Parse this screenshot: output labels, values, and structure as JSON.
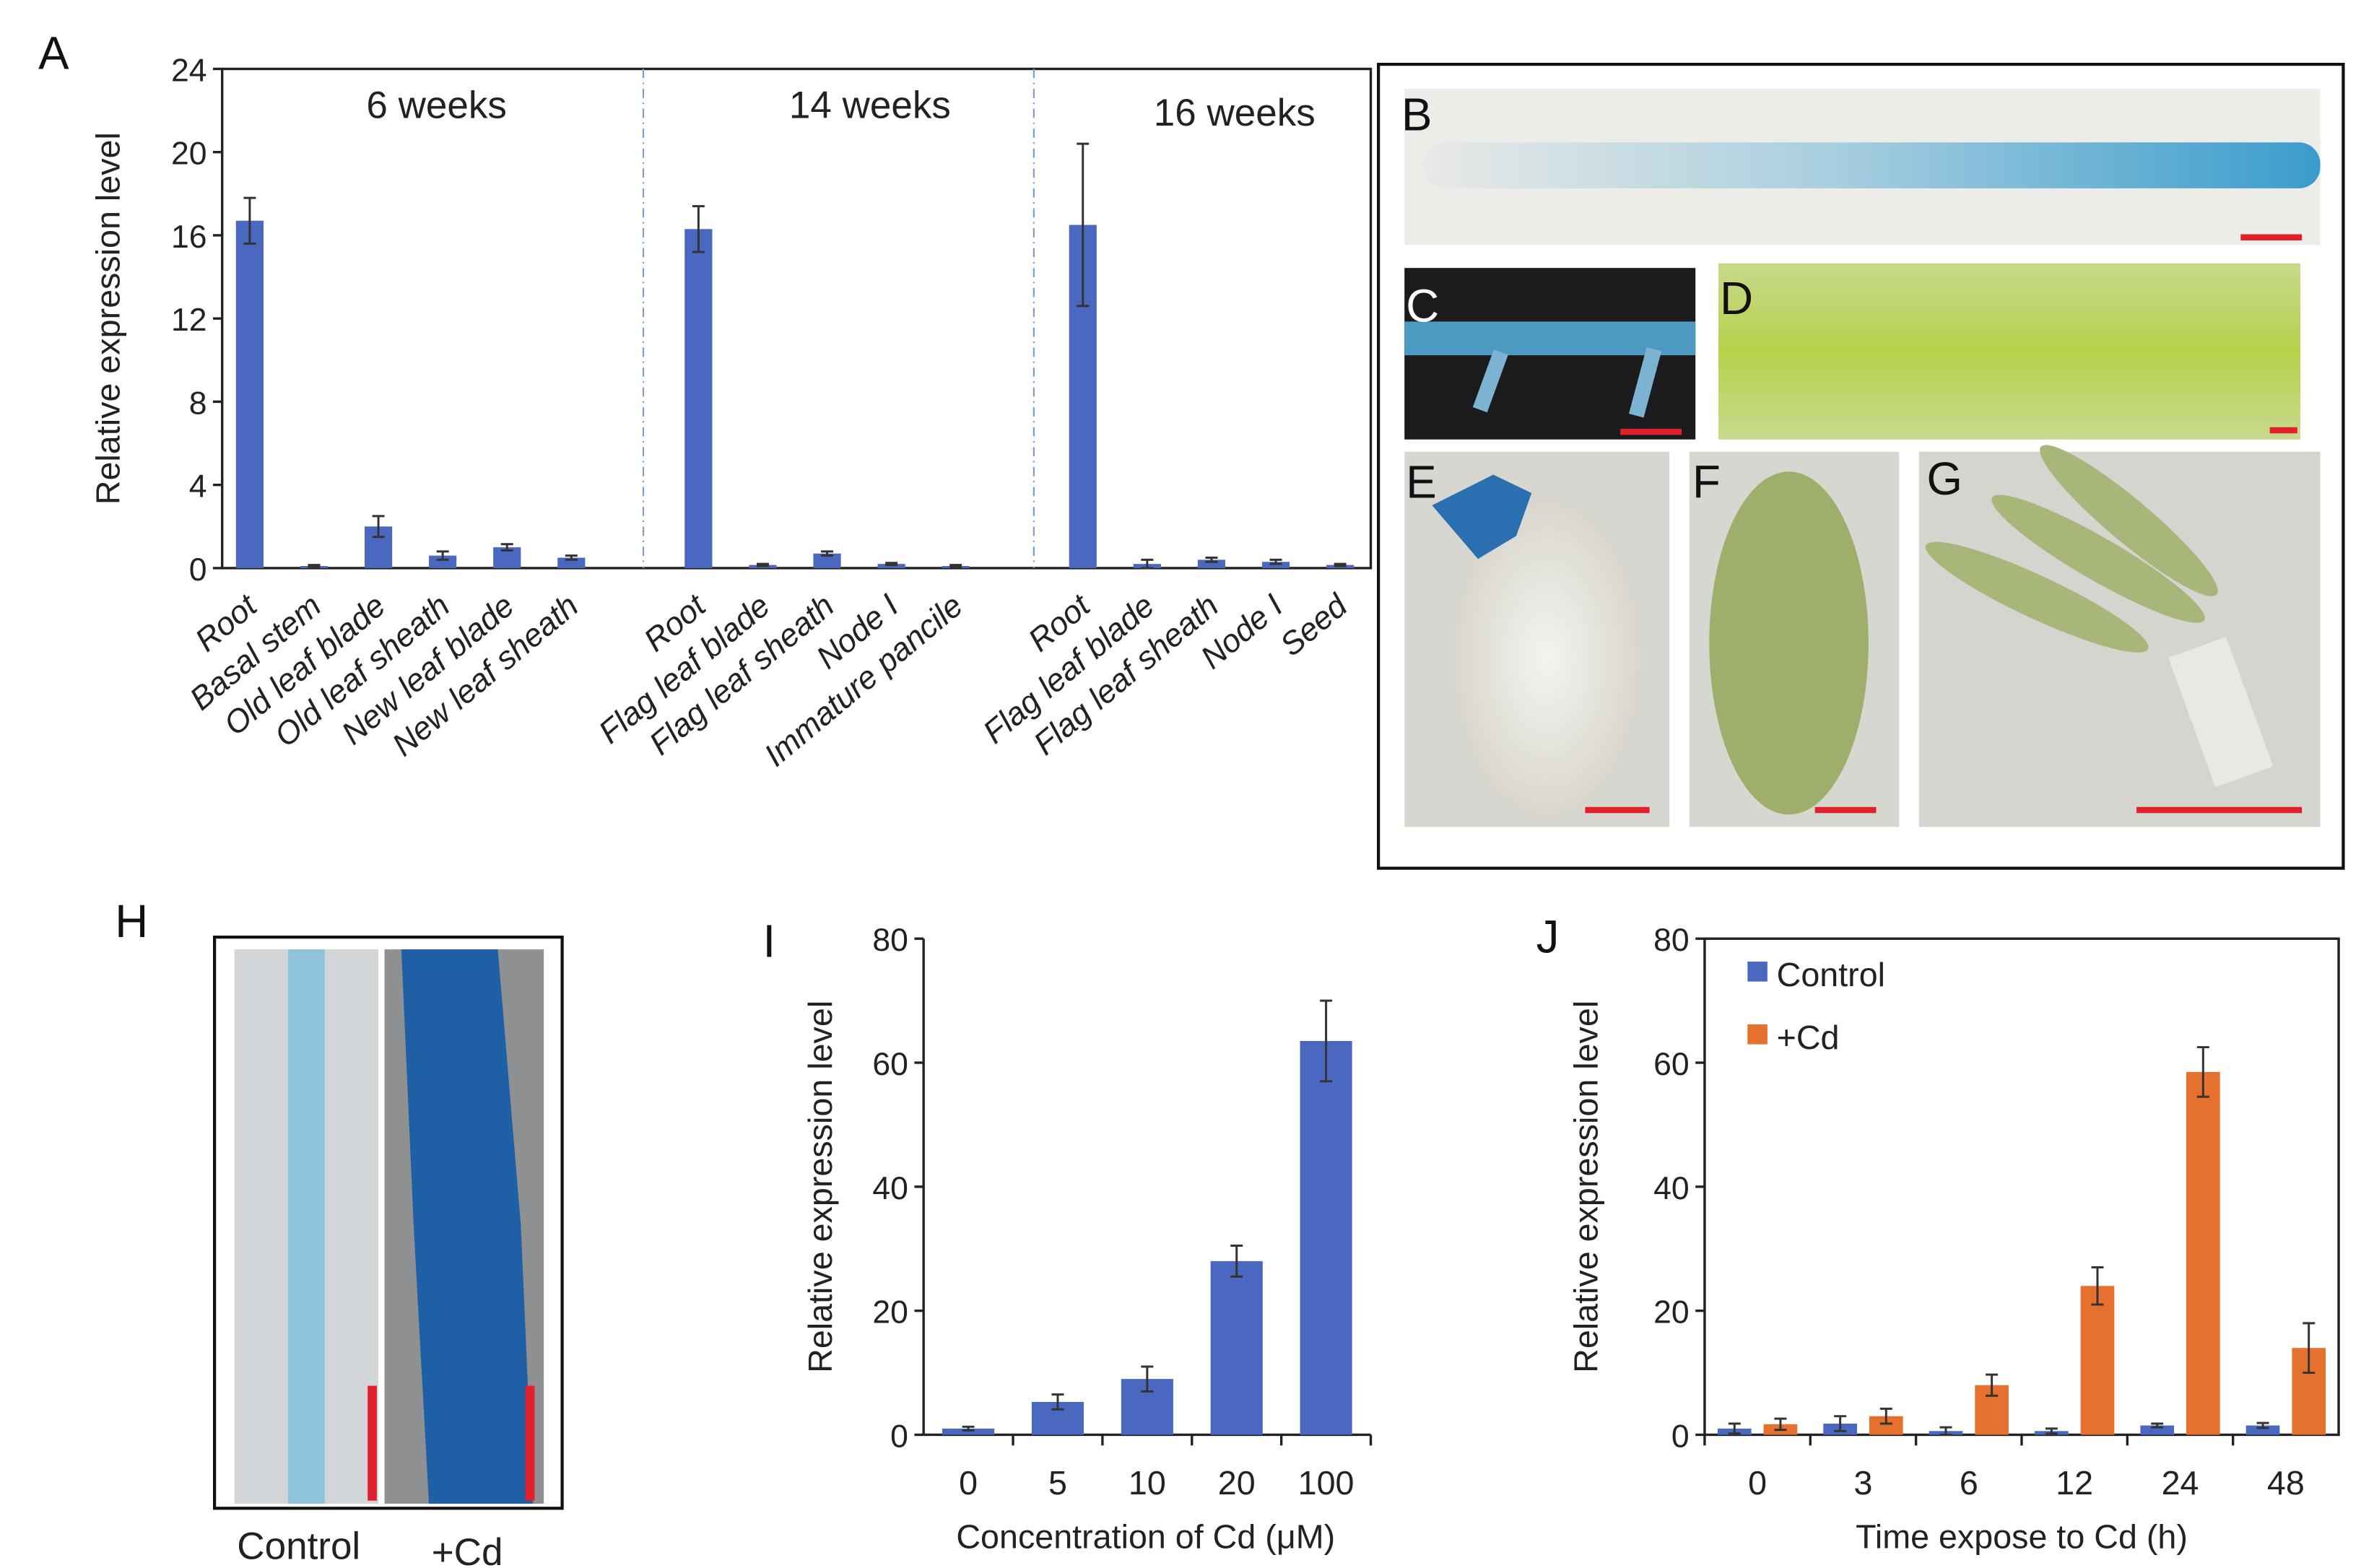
{
  "panels": {
    "A": "A",
    "B": "B",
    "C": "C",
    "D": "D",
    "E": "E",
    "F": "F",
    "G": "G",
    "H": "H",
    "I": "I",
    "J": "J"
  },
  "panel_h": {
    "labels": [
      "Control",
      "+Cd"
    ]
  },
  "colors": {
    "blue": "#4a68c0",
    "orange": "#e6702e",
    "scalebar": "#e0202a"
  },
  "chart_data": [
    {
      "id": "A",
      "type": "bar",
      "ylabel": "Relative expression level",
      "ylim": [
        0,
        24
      ],
      "yticks": [
        0,
        4,
        8,
        12,
        16,
        20,
        24
      ],
      "groups": [
        {
          "title": "6 weeks",
          "categories": [
            "Root",
            "Basal stem",
            "Old leaf blade",
            "Old leaf sheath",
            "New leaf blade",
            "New leaf sheath"
          ],
          "values": [
            16.7,
            0.1,
            2.0,
            0.6,
            1.0,
            0.5
          ],
          "errors": [
            1.1,
            0.05,
            0.5,
            0.2,
            0.15,
            0.1
          ]
        },
        {
          "title": "14 weeks",
          "categories": [
            "Root",
            "Flag leaf blade",
            "Flag leaf sheath",
            "Node I",
            "Immature pancile"
          ],
          "values": [
            16.3,
            0.15,
            0.7,
            0.2,
            0.1
          ],
          "errors": [
            1.1,
            0.05,
            0.1,
            0.05,
            0.05
          ]
        },
        {
          "title": "16 weeks",
          "categories": [
            "Root",
            "Flag leaf blade",
            "Flag leaf sheath",
            "Node I",
            "Seed"
          ],
          "values": [
            16.5,
            0.2,
            0.4,
            0.3,
            0.15
          ],
          "errors": [
            3.9,
            0.2,
            0.1,
            0.1,
            0.05
          ]
        }
      ]
    },
    {
      "id": "I",
      "type": "bar",
      "xlabel": "Concentration of Cd (μM)",
      "ylabel": "Relative expression level",
      "ylim": [
        0,
        80
      ],
      "yticks": [
        0,
        20,
        40,
        60,
        80
      ],
      "categories": [
        "0",
        "5",
        "10",
        "20",
        "100"
      ],
      "values": [
        1,
        5.3,
        9,
        28,
        63.5
      ],
      "errors": [
        0.3,
        1.2,
        2,
        2.5,
        6.5
      ]
    },
    {
      "id": "J",
      "type": "bar",
      "xlabel": "Time expose to Cd (h)",
      "ylabel": "Relative expression level",
      "ylim": [
        0,
        80
      ],
      "yticks": [
        0,
        20,
        40,
        60,
        80
      ],
      "categories": [
        "0",
        "3",
        "6",
        "12",
        "24",
        "48"
      ],
      "legend": "top-left",
      "series": [
        {
          "name": "Control",
          "values": [
            1,
            1.8,
            0.6,
            0.6,
            1.5,
            1.5
          ],
          "errors": [
            0.8,
            1.2,
            0.6,
            0.4,
            0.3,
            0.4
          ]
        },
        {
          "name": "+Cd",
          "values": [
            1.7,
            3,
            8,
            24,
            58.5,
            14
          ],
          "errors": [
            0.9,
            1.2,
            1.7,
            3,
            4,
            4
          ]
        }
      ]
    }
  ]
}
